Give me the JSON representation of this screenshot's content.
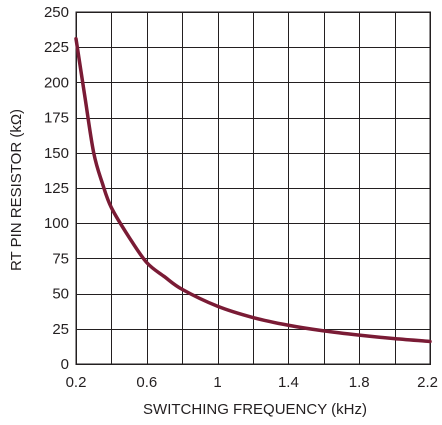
{
  "colors": {
    "curve": "#7a1b35",
    "grid": "#231f20",
    "background": "#ffffff"
  },
  "chart_data": {
    "type": "line",
    "title": "",
    "xlabel": "SWITCHING FREQUENCY (kHz)",
    "ylabel": "RT PIN RESISTOR (kΩ)",
    "xlim": [
      0.2,
      2.2
    ],
    "ylim": [
      0,
      250
    ],
    "x_ticks": [
      0.2,
      0.4,
      0.6,
      0.8,
      1.0,
      1.2,
      1.4,
      1.6,
      1.8,
      2.0,
      2.2
    ],
    "x_tick_labels": [
      "0.2",
      "",
      "0.6",
      "",
      "1",
      "",
      "1.4",
      "",
      "1.8",
      "",
      "2.2"
    ],
    "y_ticks": [
      0,
      25,
      50,
      75,
      100,
      125,
      150,
      175,
      200,
      225,
      250
    ],
    "y_tick_labels": [
      "0",
      "25",
      "50",
      "75",
      "100",
      "125",
      "150",
      "175",
      "200",
      "225",
      "250"
    ],
    "grid": true,
    "series": [
      {
        "x": [
          0.2,
          0.25,
          0.3,
          0.35,
          0.4,
          0.5,
          0.6,
          0.7,
          0.8,
          1.0,
          1.2,
          1.4,
          1.6,
          1.8,
          2.0,
          2.2
        ],
        "y": [
          231,
          190,
          150,
          128,
          111,
          90,
          72,
          62,
          53,
          41,
          33,
          27.5,
          23.5,
          20.5,
          18,
          16
        ]
      }
    ]
  }
}
